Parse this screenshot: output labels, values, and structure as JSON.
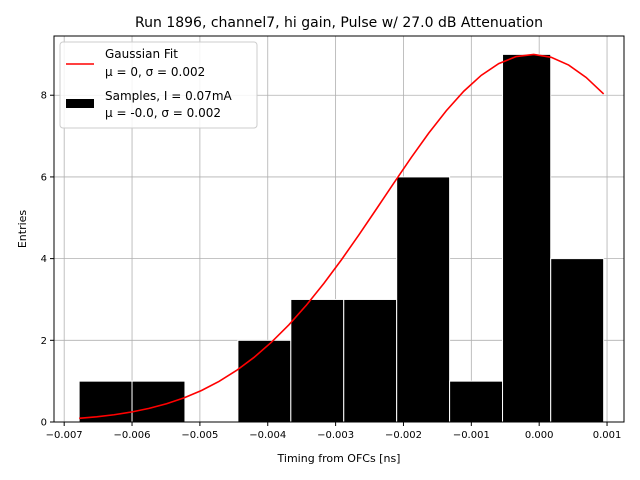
{
  "chart_data": {
    "type": "bar",
    "title": "Run 1896, channel7, hi gain, Pulse w/ 27.0 dB Attenuation",
    "xlabel": "Timing from OFCs [ns]",
    "ylabel": "Entries",
    "xlim": [
      -0.00715,
      0.00125
    ],
    "ylim": [
      0,
      9.45
    ],
    "grid": true,
    "legend_position": "top-left",
    "x_ticks": [
      -0.007,
      -0.006,
      -0.005,
      -0.004,
      -0.003,
      -0.002,
      -0.001,
      0.0,
      0.001
    ],
    "x_tick_labels": [
      "−0.007",
      "−0.006",
      "−0.005",
      "−0.004",
      "−0.003",
      "−0.002",
      "−0.001",
      "0.000",
      "0.001"
    ],
    "y_ticks": [
      0,
      2,
      4,
      6,
      8
    ],
    "y_tick_labels": [
      "0",
      "2",
      "4",
      "6",
      "8"
    ],
    "histogram": {
      "name": "Samples, I = 0.07mA",
      "stats": "μ = -0.0, σ = 0.002",
      "color": "#000000",
      "bin_edges": [
        -0.00678,
        -0.006,
        -0.00522,
        -0.00444,
        -0.00366,
        -0.00288,
        -0.0021,
        -0.00132,
        -0.00054,
        0.00017,
        0.00095
      ],
      "counts": [
        1,
        1,
        0,
        2,
        3,
        3,
        6,
        1,
        9,
        4
      ]
    },
    "fit": {
      "name": "Gaussian Fit",
      "stats": "μ = 0, σ = 0.002",
      "color": "#ff0000",
      "amplitude": 9.0,
      "mean": -0.0001,
      "sigma": 0.0022,
      "x_range": [
        -0.00678,
        0.00095
      ]
    }
  }
}
